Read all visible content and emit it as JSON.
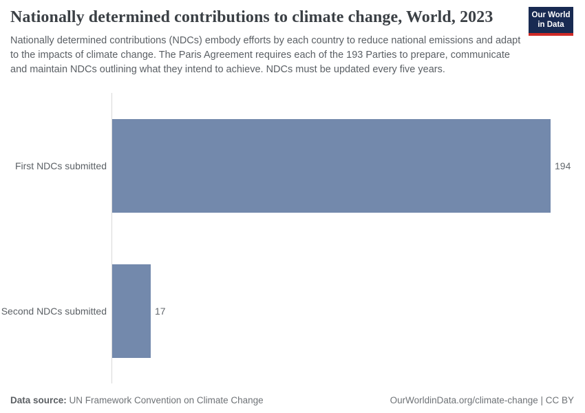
{
  "header": {
    "title": "Nationally determined contributions to climate change, World, 2023",
    "subtitle": "Nationally determined contributions (NDCs) embody efforts by each country to reduce national emissions and adapt to the impacts of climate change. The Paris Agreement requires each of the 193 Parties to prepare, communicate and maintain NDCs outlining what they intend to achieve. NDCs must be updated every five years.",
    "logo": {
      "line1": "Our World",
      "line2": "in Data"
    }
  },
  "chart_data": {
    "type": "bar",
    "orientation": "horizontal",
    "title": "Nationally determined contributions to climate change, World, 2023",
    "categories": [
      "First NDCs submitted",
      "Second NDCs submitted"
    ],
    "values": [
      194,
      17
    ],
    "value_labels": [
      "194",
      "17"
    ],
    "xlabel": "",
    "ylabel": "",
    "xlim": [
      0,
      194
    ],
    "grid": false,
    "legend": "none",
    "bar_color": "#7389ac"
  },
  "footer": {
    "source_label": "Data source:",
    "source_text": " UN Framework Convention on Climate Change",
    "right_text": "OurWorldinData.org/climate-change | CC BY"
  },
  "colors": {
    "bar": "#7389ac",
    "logo_background": "#182a52",
    "logo_accent": "#cf2a27",
    "title_text": "#3b4045",
    "axis_line": "#d7d7d7"
  }
}
